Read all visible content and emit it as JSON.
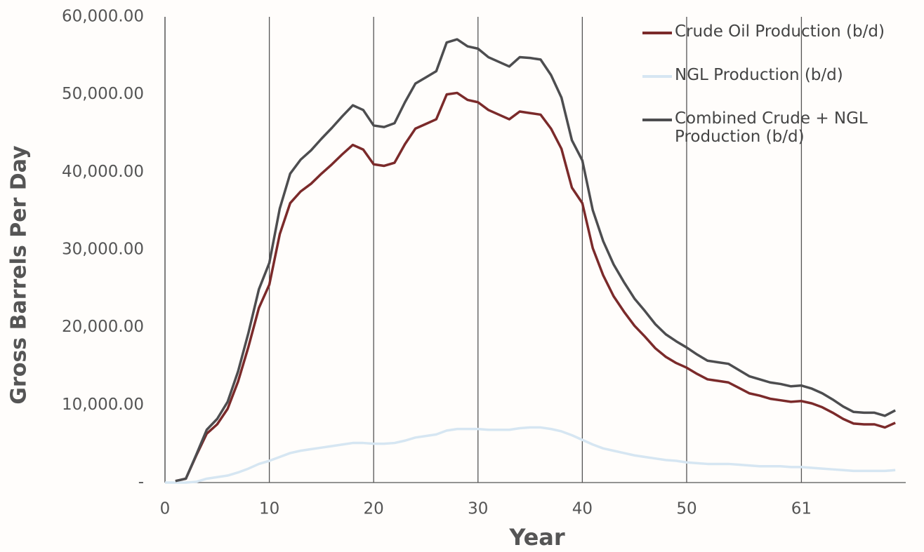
{
  "chart_data": {
    "type": "line",
    "x_label": "Year",
    "y_label": "Gross Barrels Per Day",
    "x": [
      0,
      1,
      2,
      3,
      4,
      5,
      6,
      7,
      8,
      9,
      10,
      11,
      12,
      13,
      14,
      15,
      16,
      17,
      18,
      19,
      20,
      21,
      22,
      23,
      24,
      25,
      26,
      27,
      28,
      29,
      30,
      31,
      32,
      33,
      34,
      35,
      36,
      37,
      38,
      39,
      40,
      41,
      42,
      43,
      44,
      45,
      46,
      47,
      48,
      49,
      50,
      51,
      52,
      53,
      54,
      55,
      56,
      57,
      58,
      59,
      60,
      61,
      62,
      63,
      64,
      65,
      66,
      67,
      68,
      69,
      70
    ],
    "series": [
      {
        "name": "Crude Oil Production (b/d)",
        "color": "#7b2a2a",
        "values": [
          null,
          200,
          500,
          3500,
          6300,
          7500,
          9500,
          13000,
          17500,
          22500,
          25500,
          32000,
          36000,
          37500,
          38500,
          39800,
          41000,
          42300,
          43500,
          42900,
          41000,
          40800,
          41200,
          43600,
          45600,
          46200,
          46800,
          50000,
          50200,
          49300,
          49000,
          48000,
          47400,
          46800,
          47800,
          47600,
          47400,
          45600,
          43000,
          38000,
          36000,
          30200,
          26700,
          24000,
          22000,
          20200,
          18800,
          17300,
          16200,
          15400,
          14800,
          14000,
          13300,
          13100,
          12900,
          12200,
          11500,
          11200,
          10800,
          10600,
          10400,
          10500,
          10200,
          9700,
          9000,
          8200,
          7600,
          7500,
          7500,
          7100,
          7700
        ]
      },
      {
        "name": "NGL Production (b/d)",
        "color": "#d6e6f2",
        "values": [
          0,
          0,
          0,
          100,
          500,
          700,
          900,
          1300,
          1800,
          2400,
          2800,
          3300,
          3800,
          4100,
          4300,
          4500,
          4700,
          4900,
          5100,
          5100,
          5000,
          5000,
          5100,
          5400,
          5800,
          6000,
          6200,
          6700,
          6900,
          6900,
          6900,
          6800,
          6800,
          6800,
          7000,
          7100,
          7100,
          6900,
          6600,
          6100,
          5500,
          4900,
          4400,
          4100,
          3800,
          3500,
          3300,
          3100,
          2900,
          2800,
          2600,
          2500,
          2400,
          2400,
          2400,
          2300,
          2200,
          2100,
          2100,
          2100,
          2000,
          2000,
          1900,
          1800,
          1700,
          1600,
          1500,
          1500,
          1500,
          1500,
          1600
        ]
      },
      {
        "name": "Combined Crude + NGL Production (b/d)",
        "color": "#4d4d4f",
        "values": [
          null,
          200,
          500,
          3600,
          6800,
          8200,
          10400,
          14300,
          19300,
          24900,
          28300,
          35300,
          39800,
          41600,
          42800,
          44300,
          45700,
          47200,
          48600,
          48000,
          46000,
          45800,
          46300,
          49000,
          51400,
          52200,
          53000,
          56700,
          57100,
          56200,
          55900,
          54800,
          54200,
          53600,
          54800,
          54700,
          54500,
          52500,
          49600,
          44100,
          41500,
          35100,
          31100,
          28100,
          25800,
          23700,
          22100,
          20400,
          19100,
          18200,
          17400,
          16500,
          15700,
          15500,
          15300,
          14500,
          13700,
          13300,
          12900,
          12700,
          12400,
          12500,
          12100,
          11500,
          10700,
          9800,
          9100,
          9000,
          9000,
          8600,
          9300
        ]
      }
    ],
    "xlim": [
      0,
      71
    ],
    "xticks": [
      0,
      10,
      20,
      30,
      40,
      50,
      61
    ],
    "ylim": [
      0,
      60000
    ],
    "yticks": [
      {
        "value": 0,
        "label": "-"
      },
      {
        "value": 10000,
        "label": "10,000.00"
      },
      {
        "value": 20000,
        "label": "20,000.00"
      },
      {
        "value": 30000,
        "label": "30,000.00"
      },
      {
        "value": 40000,
        "label": "40,000.00"
      },
      {
        "value": 50000,
        "label": "50,000.00"
      },
      {
        "value": 60000,
        "label": "60,000.00"
      }
    ],
    "grid": "x",
    "legend": "upper right"
  }
}
